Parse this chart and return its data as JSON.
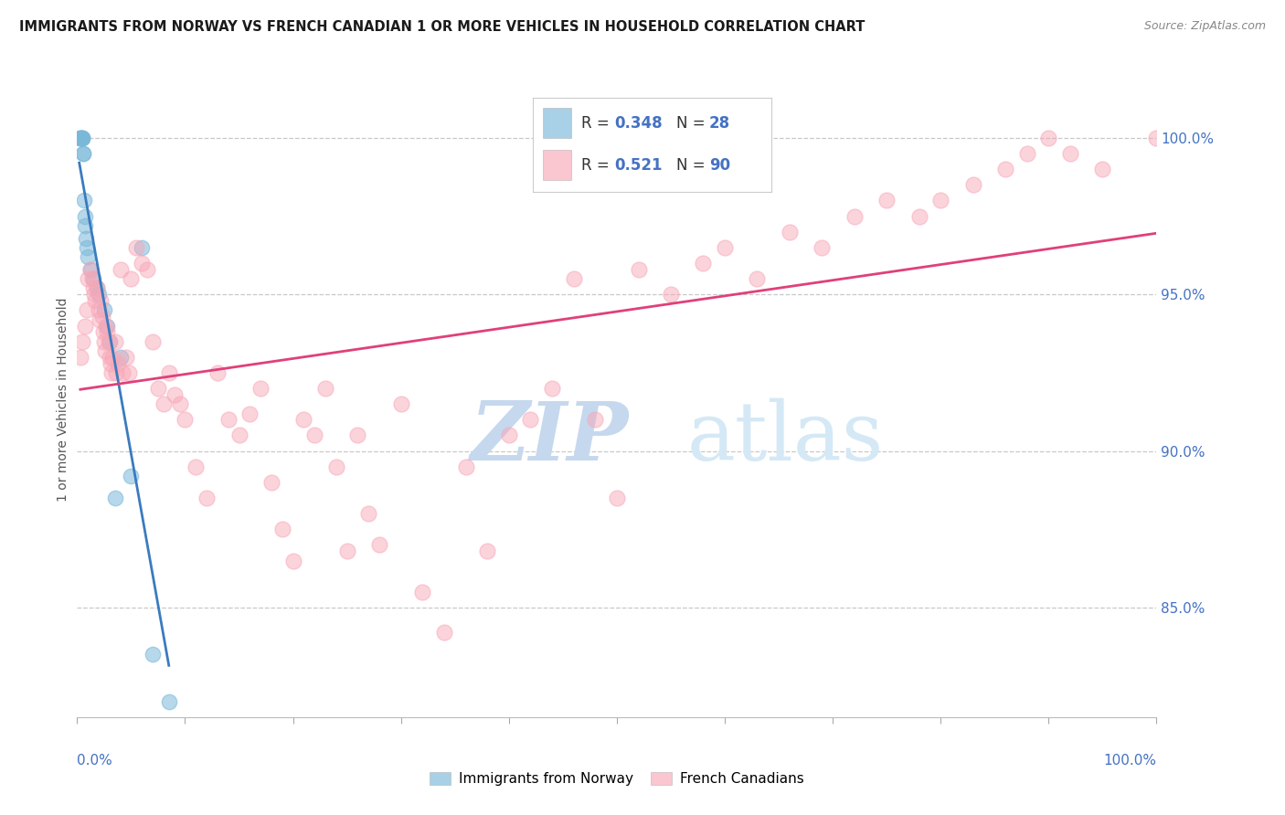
{
  "title": "IMMIGRANTS FROM NORWAY VS FRENCH CANADIAN 1 OR MORE VEHICLES IN HOUSEHOLD CORRELATION CHART",
  "source": "Source: ZipAtlas.com",
  "ylabel": "1 or more Vehicles in Household",
  "xmin": 0.0,
  "xmax": 100.0,
  "ymin": 81.5,
  "ymax": 101.8,
  "yticks": [
    85.0,
    90.0,
    95.0,
    100.0
  ],
  "ytick_labels": [
    "85.0%",
    "90.0%",
    "95.0%",
    "100.0%"
  ],
  "norway_R": 0.348,
  "norway_N": 28,
  "french_R": 0.521,
  "french_N": 90,
  "norway_color": "#7ab8d9",
  "french_color": "#f8a8b8",
  "norway_line_color": "#3a7bbf",
  "french_line_color": "#e0407a",
  "norway_x": [
    0.2,
    0.3,
    0.35,
    0.4,
    0.45,
    0.5,
    0.5,
    0.55,
    0.6,
    0.65,
    0.7,
    0.75,
    0.8,
    0.9,
    1.0,
    1.2,
    1.5,
    1.8,
    2.0,
    2.5,
    2.8,
    3.0,
    3.5,
    4.0,
    5.0,
    6.0,
    7.0,
    8.5
  ],
  "norway_y": [
    100.0,
    100.0,
    100.0,
    100.0,
    100.0,
    100.0,
    100.0,
    99.5,
    99.5,
    98.0,
    97.5,
    97.2,
    96.8,
    96.5,
    96.2,
    95.8,
    95.5,
    95.2,
    95.0,
    94.5,
    94.0,
    93.5,
    88.5,
    93.0,
    89.2,
    96.5,
    83.5,
    82.0
  ],
  "french_x": [
    0.3,
    0.5,
    0.7,
    0.9,
    1.0,
    1.2,
    1.4,
    1.5,
    1.6,
    1.7,
    1.8,
    2.0,
    2.1,
    2.2,
    2.3,
    2.4,
    2.5,
    2.6,
    2.7,
    2.8,
    2.9,
    3.0,
    3.1,
    3.2,
    3.3,
    3.5,
    3.6,
    3.8,
    4.0,
    4.2,
    4.5,
    4.8,
    5.0,
    5.5,
    6.0,
    6.5,
    7.0,
    7.5,
    8.0,
    8.5,
    9.0,
    9.5,
    10.0,
    11.0,
    12.0,
    13.0,
    14.0,
    15.0,
    16.0,
    17.0,
    18.0,
    19.0,
    20.0,
    21.0,
    22.0,
    23.0,
    24.0,
    25.0,
    26.0,
    27.0,
    28.0,
    30.0,
    32.0,
    34.0,
    36.0,
    38.0,
    40.0,
    42.0,
    44.0,
    46.0,
    48.0,
    50.0,
    52.0,
    55.0,
    58.0,
    60.0,
    63.0,
    66.0,
    69.0,
    72.0,
    75.0,
    78.0,
    80.0,
    83.0,
    86.0,
    88.0,
    90.0,
    92.0,
    95.0,
    100.0
  ],
  "french_y": [
    93.0,
    93.5,
    94.0,
    94.5,
    95.5,
    95.8,
    95.5,
    95.2,
    95.0,
    94.8,
    95.2,
    94.5,
    94.2,
    94.8,
    94.3,
    93.8,
    93.5,
    93.2,
    94.0,
    93.8,
    93.5,
    93.0,
    92.8,
    92.5,
    93.0,
    93.5,
    92.5,
    92.8,
    95.8,
    92.5,
    93.0,
    92.5,
    95.5,
    96.5,
    96.0,
    95.8,
    93.5,
    92.0,
    91.5,
    92.5,
    91.8,
    91.5,
    91.0,
    89.5,
    88.5,
    92.5,
    91.0,
    90.5,
    91.2,
    92.0,
    89.0,
    87.5,
    86.5,
    91.0,
    90.5,
    92.0,
    89.5,
    86.8,
    90.5,
    88.0,
    87.0,
    91.5,
    85.5,
    84.2,
    89.5,
    86.8,
    90.5,
    91.0,
    92.0,
    95.5,
    91.0,
    88.5,
    95.8,
    95.0,
    96.0,
    96.5,
    95.5,
    97.0,
    96.5,
    97.5,
    98.0,
    97.5,
    98.0,
    98.5,
    99.0,
    99.5,
    100.0,
    99.5,
    99.0,
    100.0
  ],
  "legend_norway_label": "Immigrants from Norway",
  "legend_french_label": "French Canadians",
  "title_fontsize": 10.5,
  "source_fontsize": 9,
  "ylabel_fontsize": 10,
  "tick_color": "#4472c4",
  "grid_color": "#c8c8c8",
  "bg_color": "#ffffff",
  "watermark_zip_color": "#c5d8ee",
  "watermark_atlas_color": "#d5e8f5"
}
